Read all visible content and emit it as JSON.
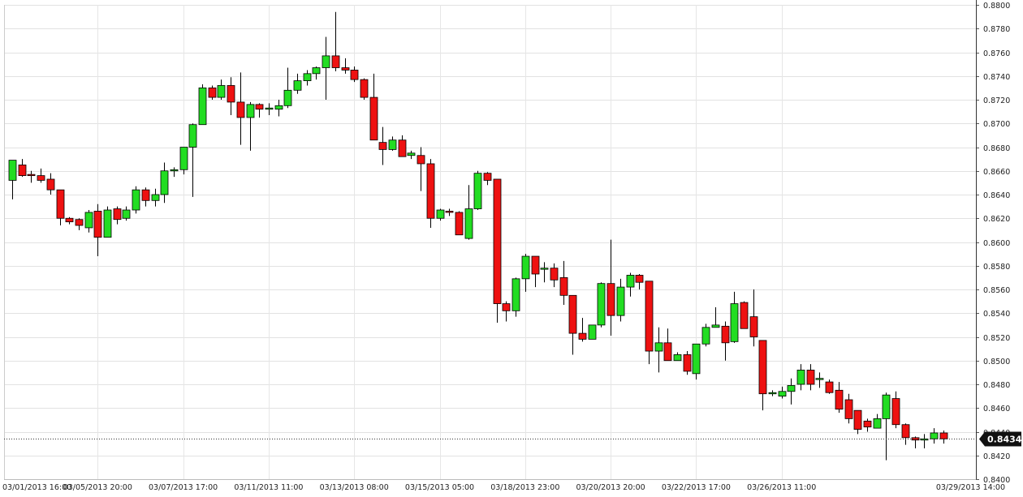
{
  "chart_data": {
    "type": "candlestick",
    "ylim": [
      0.84,
      0.88
    ],
    "y_ticks": [
      "0.8800",
      "0.8780",
      "0.8760",
      "0.8740",
      "0.8720",
      "0.8700",
      "0.8680",
      "0.8660",
      "0.8640",
      "0.8620",
      "0.8600",
      "0.8580",
      "0.8560",
      "0.8540",
      "0.8520",
      "0.8500",
      "0.8480",
      "0.8460",
      "0.8440",
      "0.8420",
      "0.8400"
    ],
    "x_tick_labels": [
      {
        "label": "03/01/2013 16:00",
        "index": 0
      },
      {
        "label": "03/05/2013 20:00",
        "index": 9
      },
      {
        "label": "03/07/2013 17:00",
        "index": 18
      },
      {
        "label": "03/11/2013 11:00",
        "index": 27
      },
      {
        "label": "03/13/2013 08:00",
        "index": 36
      },
      {
        "label": "03/15/2013 05:00",
        "index": 45
      },
      {
        "label": "03/18/2013 23:00",
        "index": 54
      },
      {
        "label": "03/20/2013 20:00",
        "index": 63
      },
      {
        "label": "03/22/2013 17:00",
        "index": 72
      },
      {
        "label": "03/26/2013 11:00",
        "index": 81
      },
      {
        "label": "03/29/2013 14:00",
        "index": 97
      }
    ],
    "last_price": "0.8434",
    "grid": true,
    "up_color": "#22dd22",
    "down_color": "#ee1111",
    "candles": [
      [
        0.8652,
        0.8669,
        0.8636,
        0.8669
      ],
      [
        0.8665,
        0.867,
        0.8655,
        0.8656
      ],
      [
        0.8657,
        0.866,
        0.865,
        0.8656
      ],
      [
        0.8656,
        0.8662,
        0.865,
        0.8652
      ],
      [
        0.8653,
        0.8658,
        0.864,
        0.8644
      ],
      [
        0.8644,
        0.8644,
        0.8614,
        0.862
      ],
      [
        0.862,
        0.8621,
        0.8615,
        0.8617
      ],
      [
        0.8619,
        0.862,
        0.861,
        0.8614
      ],
      [
        0.8612,
        0.8627,
        0.8608,
        0.8625
      ],
      [
        0.8626,
        0.8632,
        0.8588,
        0.8604
      ],
      [
        0.8604,
        0.863,
        0.8604,
        0.8627
      ],
      [
        0.8628,
        0.863,
        0.8615,
        0.8619
      ],
      [
        0.862,
        0.863,
        0.8618,
        0.8627
      ],
      [
        0.8627,
        0.8647,
        0.8624,
        0.8644
      ],
      [
        0.8644,
        0.8646,
        0.863,
        0.8635
      ],
      [
        0.8635,
        0.8645,
        0.863,
        0.864
      ],
      [
        0.864,
        0.8667,
        0.8633,
        0.866
      ],
      [
        0.866,
        0.8663,
        0.8655,
        0.8661
      ],
      [
        0.8661,
        0.868,
        0.8657,
        0.868
      ],
      [
        0.868,
        0.87,
        0.8638,
        0.8699
      ],
      [
        0.8699,
        0.8733,
        0.8699,
        0.873
      ],
      [
        0.873,
        0.8732,
        0.872,
        0.8722
      ],
      [
        0.8722,
        0.8737,
        0.872,
        0.8732
      ],
      [
        0.8732,
        0.8739,
        0.8707,
        0.8718
      ],
      [
        0.8718,
        0.8743,
        0.8682,
        0.8705
      ],
      [
        0.8705,
        0.8718,
        0.8677,
        0.8716
      ],
      [
        0.8716,
        0.8717,
        0.8705,
        0.8712
      ],
      [
        0.8713,
        0.8717,
        0.8707,
        0.8713
      ],
      [
        0.8712,
        0.872,
        0.8706,
        0.8715
      ],
      [
        0.8715,
        0.8747,
        0.8713,
        0.8728
      ],
      [
        0.8728,
        0.8742,
        0.8725,
        0.8736
      ],
      [
        0.8736,
        0.8745,
        0.8732,
        0.8742
      ],
      [
        0.8742,
        0.8748,
        0.8737,
        0.8747
      ],
      [
        0.8747,
        0.8773,
        0.872,
        0.8757
      ],
      [
        0.8757,
        0.8794,
        0.8744,
        0.8747
      ],
      [
        0.8747,
        0.8755,
        0.8742,
        0.8745
      ],
      [
        0.8745,
        0.8748,
        0.8735,
        0.8737
      ],
      [
        0.8737,
        0.8738,
        0.872,
        0.8722
      ],
      [
        0.8722,
        0.8742,
        0.8686,
        0.8686
      ],
      [
        0.8684,
        0.8697,
        0.8665,
        0.8678
      ],
      [
        0.8678,
        0.8689,
        0.8677,
        0.8686
      ],
      [
        0.8686,
        0.869,
        0.8672,
        0.8672
      ],
      [
        0.8673,
        0.8677,
        0.867,
        0.8675
      ],
      [
        0.8673,
        0.868,
        0.8643,
        0.8666
      ],
      [
        0.8666,
        0.867,
        0.8612,
        0.862
      ],
      [
        0.862,
        0.8628,
        0.8618,
        0.8627
      ],
      [
        0.8626,
        0.8628,
        0.8622,
        0.8625
      ],
      [
        0.8625,
        0.8626,
        0.8606,
        0.8606
      ],
      [
        0.8603,
        0.8648,
        0.8602,
        0.8628
      ],
      [
        0.8628,
        0.866,
        0.8627,
        0.8658
      ],
      [
        0.8658,
        0.8659,
        0.8648,
        0.8652
      ],
      [
        0.8653,
        0.8653,
        0.8532,
        0.8548
      ],
      [
        0.8548,
        0.855,
        0.8533,
        0.8542
      ],
      [
        0.8542,
        0.857,
        0.8537,
        0.8569
      ],
      [
        0.8569,
        0.859,
        0.8558,
        0.8588
      ],
      [
        0.8588,
        0.8588,
        0.8562,
        0.8573
      ],
      [
        0.8577,
        0.8583,
        0.8566,
        0.8578
      ],
      [
        0.8578,
        0.8582,
        0.8562,
        0.8568
      ],
      [
        0.857,
        0.8584,
        0.8547,
        0.8555
      ],
      [
        0.8555,
        0.8555,
        0.8505,
        0.8523
      ],
      [
        0.8523,
        0.8536,
        0.8516,
        0.8518
      ],
      [
        0.8518,
        0.853,
        0.8518,
        0.853
      ],
      [
        0.853,
        0.8566,
        0.8528,
        0.8565
      ],
      [
        0.8565,
        0.8602,
        0.8521,
        0.8538
      ],
      [
        0.8538,
        0.8569,
        0.8533,
        0.8562
      ],
      [
        0.8562,
        0.8574,
        0.8554,
        0.8572
      ],
      [
        0.8572,
        0.8573,
        0.856,
        0.8566
      ],
      [
        0.8567,
        0.8567,
        0.8497,
        0.8508
      ],
      [
        0.8508,
        0.8528,
        0.849,
        0.8515
      ],
      [
        0.8515,
        0.8527,
        0.85,
        0.85
      ],
      [
        0.85,
        0.8507,
        0.85,
        0.8505
      ],
      [
        0.8505,
        0.8508,
        0.8488,
        0.8491
      ],
      [
        0.8489,
        0.8514,
        0.8484,
        0.8514
      ],
      [
        0.8514,
        0.8531,
        0.8512,
        0.8528
      ],
      [
        0.8528,
        0.8545,
        0.8528,
        0.853
      ],
      [
        0.8529,
        0.8533,
        0.85,
        0.8515
      ],
      [
        0.8516,
        0.8558,
        0.8515,
        0.8548
      ],
      [
        0.8549,
        0.855,
        0.8528,
        0.8527
      ],
      [
        0.8537,
        0.856,
        0.8512,
        0.852
      ],
      [
        0.8517,
        0.8517,
        0.8458,
        0.8472
      ],
      [
        0.8472,
        0.8475,
        0.847,
        0.8473
      ],
      [
        0.847,
        0.8478,
        0.8468,
        0.8474
      ],
      [
        0.8474,
        0.8485,
        0.8463,
        0.8479
      ],
      [
        0.848,
        0.8497,
        0.8475,
        0.8492
      ],
      [
        0.8492,
        0.8497,
        0.8475,
        0.848
      ],
      [
        0.8485,
        0.849,
        0.8477,
        0.8485
      ],
      [
        0.8482,
        0.8484,
        0.8472,
        0.8473
      ],
      [
        0.8475,
        0.8482,
        0.8456,
        0.8459
      ],
      [
        0.8467,
        0.8472,
        0.8447,
        0.8451
      ],
      [
        0.8458,
        0.8458,
        0.8438,
        0.8442
      ],
      [
        0.8449,
        0.8451,
        0.844,
        0.8444
      ],
      [
        0.8443,
        0.8455,
        0.8443,
        0.8451
      ],
      [
        0.8451,
        0.8473,
        0.8416,
        0.8471
      ],
      [
        0.8468,
        0.8474,
        0.8443,
        0.8446
      ],
      [
        0.8446,
        0.8447,
        0.8429,
        0.8435
      ],
      [
        0.8435,
        0.8436,
        0.8426,
        0.8433
      ],
      [
        0.8433,
        0.8438,
        0.8426,
        0.8434
      ],
      [
        0.8434,
        0.8443,
        0.843,
        0.8439
      ],
      [
        0.8439,
        0.8441,
        0.843,
        0.8434
      ]
    ]
  }
}
